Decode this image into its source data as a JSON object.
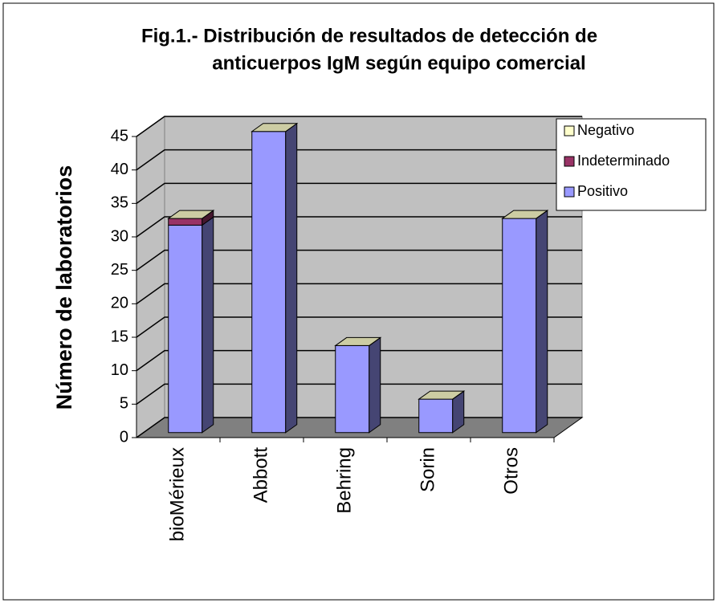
{
  "chart_data": {
    "type": "bar3d_stacked",
    "title": [
      "Fig.1.- Distribución de resultados de detección de",
      "anticuerpos IgM según equipo comercial"
    ],
    "y_label": "Número de laboratorios",
    "categories": [
      "bioMérieux",
      "Abbott",
      "Behring",
      "Sorin",
      "Otros"
    ],
    "series": [
      {
        "name": "Positivo",
        "color": "#9999ff",
        "values": [
          31,
          45,
          13,
          5,
          32
        ]
      },
      {
        "name": "Indeterminado",
        "color": "#993366",
        "values": [
          1,
          0,
          0,
          0,
          0
        ]
      },
      {
        "name": "Negativo",
        "color": "#ffffcc",
        "values": [
          0,
          0,
          0,
          0,
          0
        ]
      }
    ],
    "ylim": [
      0,
      45
    ],
    "yticks": [
      0,
      5,
      10,
      15,
      20,
      25,
      30,
      35,
      40,
      45
    ],
    "grid": true,
    "legend": "right"
  }
}
